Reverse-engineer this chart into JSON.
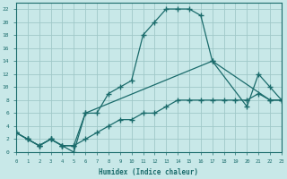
{
  "xlabel": "Humidex (Indice chaleur)",
  "background_color": "#c8e8e8",
  "grid_color": "#a0c8c8",
  "line_color": "#1a6b6b",
  "xlim": [
    0,
    23
  ],
  "ylim": [
    0,
    23
  ],
  "xticks": [
    0,
    1,
    2,
    3,
    4,
    5,
    6,
    7,
    8,
    9,
    10,
    11,
    12,
    13,
    14,
    15,
    16,
    17,
    18,
    19,
    20,
    21,
    22,
    23
  ],
  "yticks": [
    0,
    2,
    4,
    6,
    8,
    10,
    12,
    14,
    16,
    18,
    20,
    22
  ],
  "line1_x": [
    0,
    1,
    2,
    3,
    4,
    5,
    6,
    7,
    8,
    9,
    10,
    11,
    12,
    13,
    14,
    15,
    16,
    17,
    22,
    23
  ],
  "line1_y": [
    3,
    2,
    1,
    2,
    1,
    0,
    6,
    6,
    9,
    10,
    11,
    18,
    20,
    22,
    22,
    22,
    21,
    14,
    8,
    8
  ],
  "line2_x": [
    0,
    1,
    2,
    3,
    4,
    5,
    6,
    7,
    8,
    9,
    10,
    11,
    12,
    13,
    14,
    15,
    16,
    17,
    18,
    19,
    20,
    21,
    22,
    23
  ],
  "line2_y": [
    3,
    2,
    1,
    2,
    1,
    1,
    2,
    3,
    4,
    5,
    5,
    6,
    6,
    7,
    8,
    8,
    8,
    8,
    8,
    8,
    8,
    9,
    8,
    8
  ],
  "line3_x": [
    0,
    1,
    2,
    3,
    4,
    5,
    6,
    17,
    20,
    21,
    22,
    23
  ],
  "line3_y": [
    3,
    2,
    1,
    2,
    1,
    1,
    6,
    14,
    7,
    12,
    10,
    8
  ]
}
